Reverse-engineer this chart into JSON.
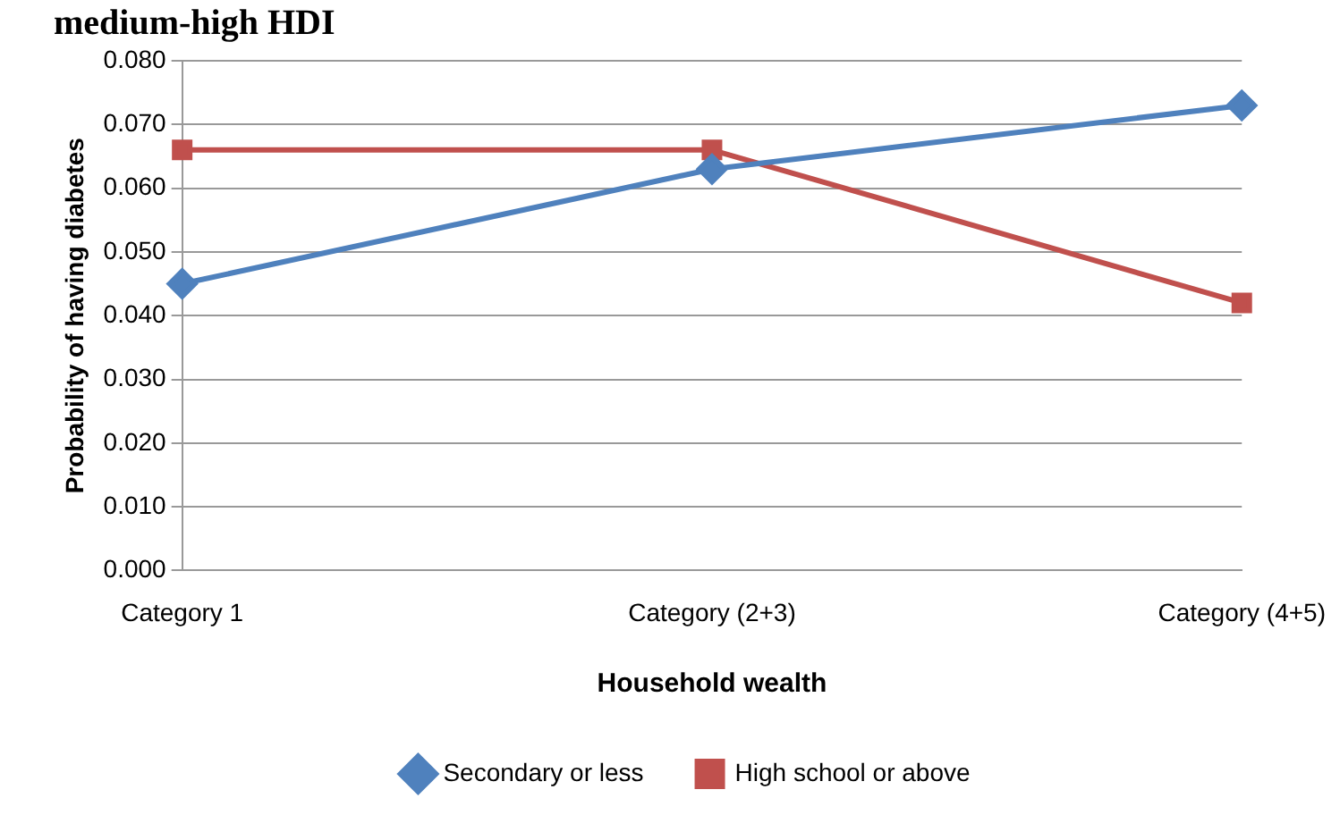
{
  "chart_data": {
    "type": "line",
    "title": "medium-high HDI",
    "xlabel": "Household wealth",
    "ylabel": "Probability of having diabetes",
    "categories": [
      "Category 1",
      "Category (2+3)",
      "Category (4+5)"
    ],
    "series": [
      {
        "name": "Secondary or less",
        "color": "#4f81bd",
        "values": [
          0.045,
          0.063,
          0.073
        ],
        "marker": "diamond"
      },
      {
        "name": "High school or above",
        "color": "#c0504d",
        "values": [
          0.066,
          0.066,
          0.042
        ],
        "marker": "square"
      }
    ],
    "ylim": [
      0,
      0.08
    ],
    "yticks": [
      {
        "value": 0,
        "label": "0.000"
      },
      {
        "value": 0.01,
        "label": "0.010"
      },
      {
        "value": 0.02,
        "label": "0.020"
      },
      {
        "value": 0.03,
        "label": "0.030"
      },
      {
        "value": 0.04,
        "label": "0.040"
      },
      {
        "value": 0.05,
        "label": "0.050"
      },
      {
        "value": 0.06,
        "label": "0.060"
      },
      {
        "value": 0.07,
        "label": "0.070"
      },
      {
        "value": 0.08,
        "label": "0.080"
      }
    ],
    "grid": "y",
    "legend": "bottom"
  }
}
